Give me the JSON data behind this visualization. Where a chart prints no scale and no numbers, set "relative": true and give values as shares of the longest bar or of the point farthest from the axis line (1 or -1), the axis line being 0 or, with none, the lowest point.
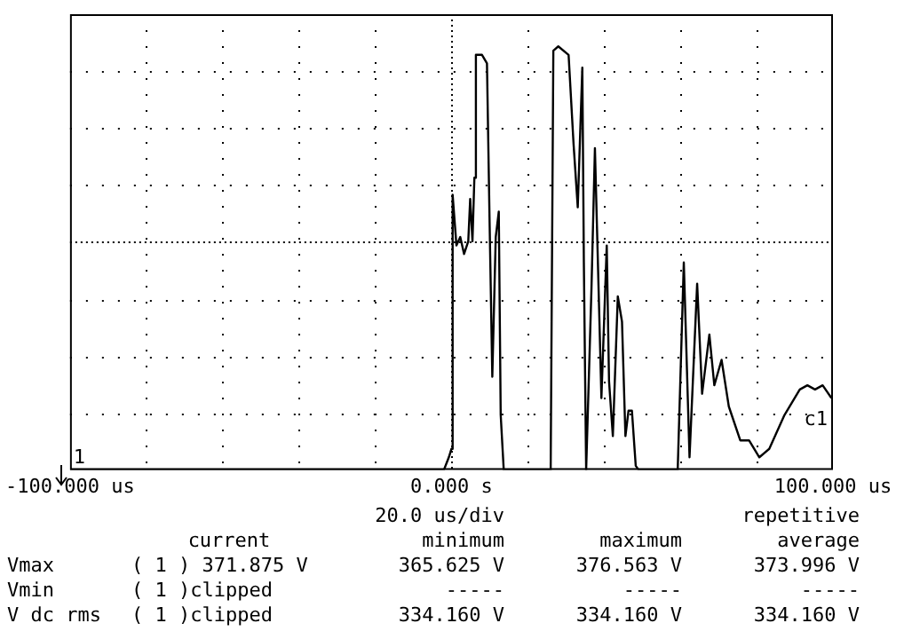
{
  "chart_data": {
    "type": "line",
    "relative": true,
    "grid": true,
    "legend": false,
    "marker": "none",
    "line_style": "solid",
    "xlim": [
      -100,
      100
    ],
    "xticks": [
      {
        "value": -100,
        "label": "-100.000 us"
      },
      {
        "value": -80,
        "label": null
      },
      {
        "value": -60,
        "label": null
      },
      {
        "value": -40,
        "label": null
      },
      {
        "value": -20,
        "label": null
      },
      {
        "value": 0,
        "label": "0.000 s"
      },
      {
        "value": 20,
        "label": null
      },
      {
        "value": 40,
        "label": null
      },
      {
        "value": 60,
        "label": null
      },
      {
        "value": 80,
        "label": null
      },
      {
        "value": 100,
        "label": "100.000 us"
      }
    ],
    "series": [
      {
        "color": "#000000",
        "x": [
          -100,
          -2,
          -0.7,
          0,
          0.3,
          1.3,
          2.3,
          3.3,
          4.4,
          4.9,
          5.5,
          6,
          6.4,
          8,
          9.3,
          10,
          10.7,
          11.6,
          12.4,
          12.9,
          13.7,
          26,
          26.7,
          28,
          30.7,
          32,
          33.1,
          34.3,
          34.7,
          35.3,
          36.7,
          37.6,
          38.7,
          39.3,
          40.7,
          41.3,
          42.3,
          43.6,
          44.7,
          45.6,
          46.4,
          47.3,
          48.3,
          49.1,
          59.3,
          60.9,
          62.4,
          64.4,
          65.7,
          67.6,
          68.9,
          70.8,
          72.7,
          75.7,
          78,
          80.7,
          83.3,
          87.3,
          91.3,
          93.3,
          95.3,
          97.3,
          99.6
        ],
        "values": [
          0,
          0,
          0.03,
          0.05,
          0.65,
          0.53,
          0.55,
          0.51,
          0.54,
          0.64,
          0.54,
          0.69,
          0.98,
          0.98,
          0.96,
          0.58,
          0.22,
          0.55,
          0.61,
          0.13,
          0,
          0,
          0.99,
          1,
          0.98,
          0.77,
          0.62,
          0.95,
          0.49,
          0,
          0.43,
          0.76,
          0.38,
          0.17,
          0.53,
          0.21,
          0.08,
          0.41,
          0.35,
          0.08,
          0.14,
          0.14,
          0.01,
          0,
          0,
          0.49,
          0.03,
          0.44,
          0.18,
          0.32,
          0.2,
          0.26,
          0.15,
          0.07,
          0.07,
          0.03,
          0.05,
          0.13,
          0.19,
          0.2,
          0.19,
          0.2,
          0.17
        ]
      }
    ],
    "annotations": [
      "1",
      "c1",
      "20.0 us/div",
      "repetitive",
      "current",
      "minimum",
      "maximum",
      "average",
      "Vmax",
      "( 1 ) 371.875 V",
      "365.625 V",
      "376.563 V",
      "373.996 V",
      "Vmin",
      "( 1 )clipped",
      "-----",
      "-----",
      "-----",
      "V dc rms",
      "( 1 )clipped",
      "334.160 V",
      "334.160 V",
      "334.160 V"
    ]
  }
}
